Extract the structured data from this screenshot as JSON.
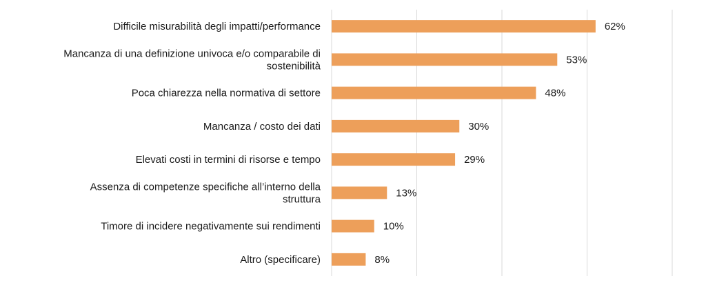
{
  "chart_data": {
    "type": "bar",
    "orientation": "horizontal",
    "categories": [
      [
        "Difficile misurabilità degli impatti/performance"
      ],
      [
        "Mancanza di una definizione univoca e/o comparabile di",
        "sostenibilità"
      ],
      [
        "Poca chiarezza nella normativa di settore"
      ],
      [
        "Mancanza / costo dei dati"
      ],
      [
        "Elevati costi in termini di risorse e tempo"
      ],
      [
        "Assenza di competenze specifiche all’interno della",
        "struttura"
      ],
      [
        "Timore di incidere negativamente sui rendimenti"
      ],
      [
        "Altro (specificare)"
      ]
    ],
    "values": [
      62,
      53,
      48,
      30,
      29,
      13,
      10,
      8
    ],
    "value_labels": [
      "62%",
      "53%",
      "48%",
      "30%",
      "29%",
      "13%",
      "10%",
      "8%"
    ],
    "xlim": [
      0,
      80
    ],
    "grid": true,
    "bar_color": "#ED9F5A",
    "title": "",
    "xlabel": "",
    "ylabel": ""
  }
}
